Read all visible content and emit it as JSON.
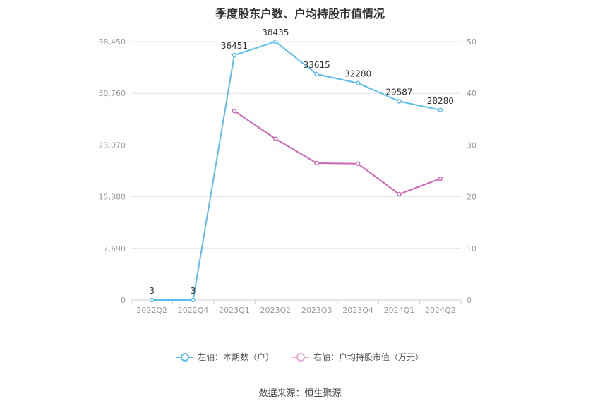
{
  "title": "季度股东户数、户均持股市值情况",
  "source": "数据来源：恒生聚源",
  "colors": {
    "left_series": "#5bbdec",
    "right_series": "#cf65b3",
    "grid": "#e3e6ee",
    "tick": "#999999",
    "label": "#333333"
  },
  "chart_data": {
    "type": "line",
    "categories": [
      "2022Q2",
      "2022Q4",
      "2023Q1",
      "2023Q2",
      "2023Q3",
      "2023Q4",
      "2024Q1",
      "2024Q2"
    ],
    "y_left": {
      "ticks": [
        "0",
        "7,690",
        "15,380",
        "23,070",
        "30,760",
        "38,450"
      ],
      "ylim": [
        0,
        38450
      ]
    },
    "y_right": {
      "ticks": [
        "0",
        "10",
        "20",
        "30",
        "40",
        "50"
      ],
      "ylim": [
        0,
        50
      ]
    },
    "series": [
      {
        "name": "左轴：本期数（户）",
        "axis": "left",
        "values": [
          3,
          3,
          36451,
          38435,
          33615,
          32280,
          29587,
          28280
        ],
        "labels": [
          "3",
          "3",
          "36451",
          "38435",
          "33615",
          "32280",
          "29587",
          "28280"
        ]
      },
      {
        "name": "右轴：户均持股市值（万元）",
        "axis": "right",
        "values": [
          null,
          null,
          36.6,
          31.2,
          26.5,
          26.4,
          20.5,
          23.5
        ]
      }
    ],
    "grid": true,
    "legend": "bottom-center"
  }
}
